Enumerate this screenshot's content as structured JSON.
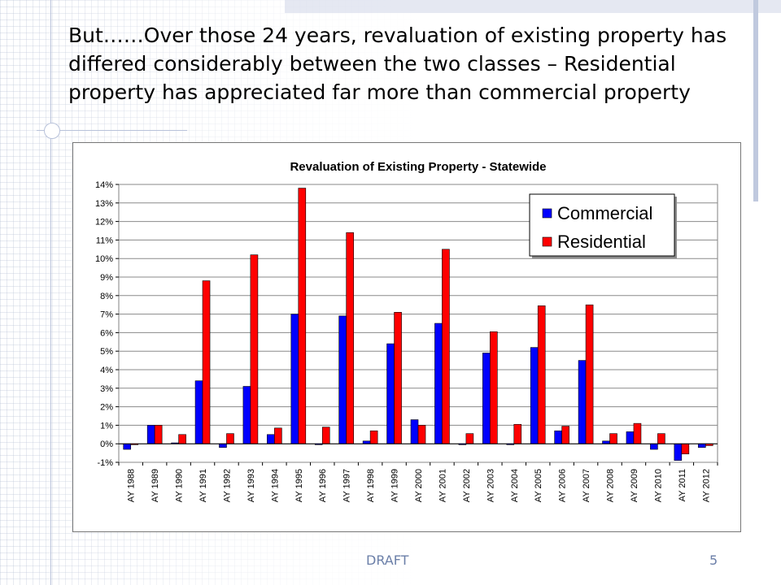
{
  "slide": {
    "heading": "But……Over those 24 years, revaluation of existing property has differed considerably between the two classes – Residential property has appreciated far more than commercial property",
    "footer_label": "DRAFT",
    "page_number": "5"
  },
  "chart_data": {
    "type": "bar",
    "title": "Revaluation of Existing Property - Statewide",
    "xlabel": "",
    "ylabel": "",
    "ylim": [
      -1,
      14
    ],
    "yticks": [
      "-1%",
      "0%",
      "1%",
      "2%",
      "3%",
      "4%",
      "5%",
      "6%",
      "7%",
      "8%",
      "9%",
      "10%",
      "11%",
      "12%",
      "13%",
      "14%"
    ],
    "grid": true,
    "legend_position": "top-right",
    "categories": [
      "AY 1988",
      "AY 1989",
      "AY 1990",
      "AY 1991",
      "AY 1992",
      "AY 1993",
      "AY 1994",
      "AY 1995",
      "AY 1996",
      "AY 1997",
      "AY 1998",
      "AY 1999",
      "AY 2000",
      "AY 2001",
      "AY 2002",
      "AY 2003",
      "AY 2004",
      "AY 2005",
      "AY 2006",
      "AY 2007",
      "AY 2008",
      "AY 2009",
      "AY 2010",
      "AY 2011",
      "AY 2012"
    ],
    "series": [
      {
        "name": "Commercial",
        "color": "#0000ff",
        "values": [
          -0.3,
          1.0,
          0.05,
          3.4,
          -0.2,
          3.1,
          0.5,
          7.0,
          -0.05,
          6.9,
          0.15,
          5.4,
          1.3,
          6.5,
          -0.05,
          4.9,
          -0.05,
          5.2,
          0.7,
          4.5,
          0.15,
          0.65,
          -0.3,
          -0.9,
          -0.2
        ]
      },
      {
        "name": "Residential",
        "color": "#ff0000",
        "values": [
          -0.05,
          1.0,
          0.5,
          8.8,
          0.55,
          10.2,
          0.85,
          13.8,
          0.9,
          11.4,
          0.7,
          7.1,
          1.0,
          10.5,
          0.55,
          6.05,
          1.05,
          7.45,
          0.95,
          7.5,
          0.55,
          1.1,
          0.55,
          -0.55,
          -0.1
        ]
      }
    ]
  }
}
